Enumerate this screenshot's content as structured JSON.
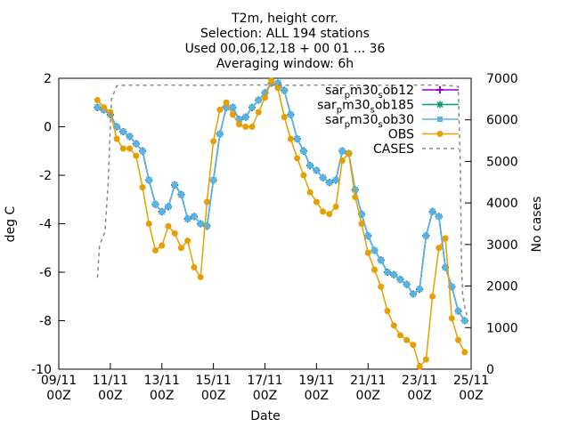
{
  "chart_data": {
    "type": "line",
    "title_lines": [
      "T2m, height corr.",
      "Selection: ALL     194 stations",
      "Used 00,06,12,18 + 00 01 ... 36",
      "Averaging window:  6h"
    ],
    "xlabel": "Date",
    "ylabel": "deg C",
    "y2label": "No cases",
    "xlim": [
      0,
      384
    ],
    "ylim": [
      -10,
      2
    ],
    "y2lim": [
      0,
      7000
    ],
    "x_ticks": [
      {
        "pos": 0,
        "day": "09/11",
        "hour": "00Z"
      },
      {
        "pos": 48,
        "day": "11/11",
        "hour": "00Z"
      },
      {
        "pos": 96,
        "day": "13/11",
        "hour": "00Z"
      },
      {
        "pos": 144,
        "day": "15/11",
        "hour": "00Z"
      },
      {
        "pos": 192,
        "day": "17/11",
        "hour": "00Z"
      },
      {
        "pos": 240,
        "day": "19/11",
        "hour": "00Z"
      },
      {
        "pos": 288,
        "day": "21/11",
        "hour": "00Z"
      },
      {
        "pos": 336,
        "day": "23/11",
        "hour": "00Z"
      },
      {
        "pos": 384,
        "day": "25/11",
        "hour": "00Z"
      }
    ],
    "y_ticks": [
      -10,
      -8,
      -6,
      -4,
      -2,
      0,
      2
    ],
    "y2_ticks": [
      0,
      1000,
      2000,
      3000,
      4000,
      5000,
      6000,
      7000
    ],
    "series": [
      {
        "name": "sar_pm30_sob12",
        "name_parts": [
          "sar",
          "p",
          "m30",
          "s",
          "ob12"
        ],
        "color": "#9400d3",
        "marker": "plus",
        "x": [
          36,
          42,
          48,
          54,
          60,
          66,
          72,
          78,
          84,
          90,
          96,
          102,
          108,
          114,
          120,
          126,
          132,
          138,
          144,
          150,
          156,
          162,
          168,
          174,
          180,
          186,
          192,
          198,
          204,
          210,
          216,
          222,
          228,
          234,
          240,
          246,
          252,
          258,
          264,
          270,
          276,
          282,
          288,
          294,
          300,
          306,
          312,
          318,
          324,
          330,
          336,
          342,
          348,
          354,
          360,
          366,
          372,
          378
        ],
        "y": [
          0.8,
          0.7,
          0.5,
          0.0,
          -0.2,
          -0.4,
          -0.7,
          -1.0,
          -2.2,
          -3.2,
          -3.5,
          -3.3,
          -2.4,
          -2.8,
          -3.8,
          -3.7,
          -4.0,
          -4.1,
          -2.2,
          -0.3,
          0.8,
          0.8,
          0.3,
          0.4,
          0.8,
          1.1,
          1.4,
          1.8,
          1.8,
          1.5,
          0.5,
          -0.5,
          -1.0,
          -1.6,
          -1.8,
          -2.1,
          -2.3,
          -2.2,
          -1.0,
          -1.1,
          -2.6,
          -3.6,
          -4.5,
          -5.1,
          -5.5,
          -6.0,
          -6.1,
          -6.3,
          -6.5,
          -6.9,
          -6.7,
          -4.5,
          -3.5,
          -3.7,
          -5.8,
          -6.6,
          -7.6,
          -8.0
        ]
      },
      {
        "name": "sar_pm30_sob185",
        "name_parts": [
          "sar",
          "p",
          "m30",
          "s",
          "ob185"
        ],
        "color": "#009e73",
        "marker": "star",
        "x": [
          36,
          42,
          48,
          54,
          60,
          66,
          72,
          78,
          84,
          90,
          96,
          102,
          108,
          114,
          120,
          126,
          132,
          138,
          144,
          150,
          156,
          162,
          168,
          174,
          180,
          186,
          192,
          198,
          204,
          210,
          216,
          222,
          228,
          234,
          240,
          246,
          252,
          258,
          264,
          270,
          276,
          282,
          288,
          294,
          300,
          306,
          312,
          318,
          324,
          330,
          336,
          342,
          348,
          354,
          360,
          366,
          372,
          378
        ],
        "y": [
          0.8,
          0.7,
          0.5,
          0.0,
          -0.2,
          -0.4,
          -0.7,
          -1.0,
          -2.2,
          -3.2,
          -3.5,
          -3.3,
          -2.4,
          -2.8,
          -3.8,
          -3.7,
          -4.0,
          -4.1,
          -2.2,
          -0.3,
          0.8,
          0.8,
          0.3,
          0.4,
          0.8,
          1.1,
          1.4,
          1.8,
          1.8,
          1.5,
          0.5,
          -0.5,
          -1.0,
          -1.6,
          -1.8,
          -2.1,
          -2.3,
          -2.2,
          -1.0,
          -1.1,
          -2.6,
          -3.6,
          -4.5,
          -5.1,
          -5.5,
          -6.0,
          -6.1,
          -6.3,
          -6.5,
          -6.9,
          -6.7,
          -4.5,
          -3.5,
          -3.7,
          -5.8,
          -6.6,
          -7.6,
          -8.0
        ]
      },
      {
        "name": "sar_pm30_sob30",
        "name_parts": [
          "sar",
          "p",
          "m30",
          "s",
          "ob30"
        ],
        "color": "#56b4e9",
        "marker": "square",
        "x": [
          36,
          42,
          48,
          54,
          60,
          66,
          72,
          78,
          84,
          90,
          96,
          102,
          108,
          114,
          120,
          126,
          132,
          138,
          144,
          150,
          156,
          162,
          168,
          174,
          180,
          186,
          192,
          198,
          204,
          210,
          216,
          222,
          228,
          234,
          240,
          246,
          252,
          258,
          264,
          270,
          276,
          282,
          288,
          294,
          300,
          306,
          312,
          318,
          324,
          330,
          336,
          342,
          348,
          354,
          360,
          366,
          372,
          378
        ],
        "y": [
          0.8,
          0.7,
          0.5,
          0.0,
          -0.2,
          -0.4,
          -0.7,
          -1.0,
          -2.2,
          -3.2,
          -3.5,
          -3.3,
          -2.4,
          -2.8,
          -3.8,
          -3.7,
          -4.0,
          -4.1,
          -2.2,
          -0.3,
          0.8,
          0.8,
          0.3,
          0.4,
          0.8,
          1.1,
          1.4,
          1.8,
          1.8,
          1.5,
          0.5,
          -0.5,
          -1.0,
          -1.6,
          -1.8,
          -2.1,
          -2.3,
          -2.2,
          -1.0,
          -1.1,
          -2.6,
          -3.6,
          -4.5,
          -5.1,
          -5.5,
          -6.0,
          -6.1,
          -6.3,
          -6.5,
          -6.9,
          -6.7,
          -4.5,
          -3.5,
          -3.7,
          -5.8,
          -6.6,
          -7.6,
          -8.0
        ]
      },
      {
        "name": "OBS",
        "color": "#e69f00",
        "marker": "circle",
        "x": [
          36,
          42,
          48,
          54,
          60,
          66,
          72,
          78,
          84,
          90,
          96,
          102,
          108,
          114,
          120,
          126,
          132,
          138,
          144,
          150,
          156,
          162,
          168,
          174,
          180,
          186,
          192,
          198,
          204,
          210,
          216,
          222,
          228,
          234,
          240,
          246,
          252,
          258,
          264,
          270,
          276,
          282,
          288,
          294,
          300,
          306,
          312,
          318,
          324,
          330,
          336,
          342,
          348,
          354,
          360,
          366,
          372,
          378
        ],
        "y": [
          1.1,
          0.8,
          0.6,
          -0.5,
          -0.9,
          -0.9,
          -1.2,
          -2.5,
          -4.0,
          -5.1,
          -4.9,
          -4.1,
          -4.4,
          -5.0,
          -4.7,
          -5.8,
          -6.2,
          -3.1,
          -0.6,
          0.7,
          1.0,
          0.5,
          0.1,
          0.0,
          0.0,
          0.6,
          1.2,
          1.9,
          1.6,
          0.4,
          -0.5,
          -1.3,
          -2.0,
          -2.7,
          -3.1,
          -3.5,
          -3.6,
          -3.3,
          -1.4,
          -1.1,
          -2.9,
          -4.0,
          -5.2,
          -5.9,
          -6.6,
          -7.6,
          -8.2,
          -8.6,
          -8.8,
          -9.0,
          -9.9,
          -9.6,
          -7.0,
          -5.0,
          -4.6,
          -7.9,
          -8.8,
          -9.3
        ]
      },
      {
        "name": "CASES",
        "color": "#888888",
        "marker": "none",
        "axis": "y2",
        "x": [
          36,
          38,
          40,
          43,
          46,
          49,
          54,
          60,
          70,
          80,
          100,
          130,
          160,
          190,
          220,
          250,
          280,
          310,
          340,
          360,
          366,
          370,
          372,
          374,
          375,
          376,
          378,
          380
        ],
        "y": [
          2200,
          3000,
          3100,
          3300,
          4500,
          6500,
          6820,
          6830,
          6840,
          6830,
          6840,
          6830,
          6840,
          6840,
          6830,
          6840,
          6830,
          6830,
          6840,
          6830,
          6820,
          6800,
          6800,
          4800,
          2600,
          1800,
          1500,
          1300
        ]
      }
    ]
  }
}
